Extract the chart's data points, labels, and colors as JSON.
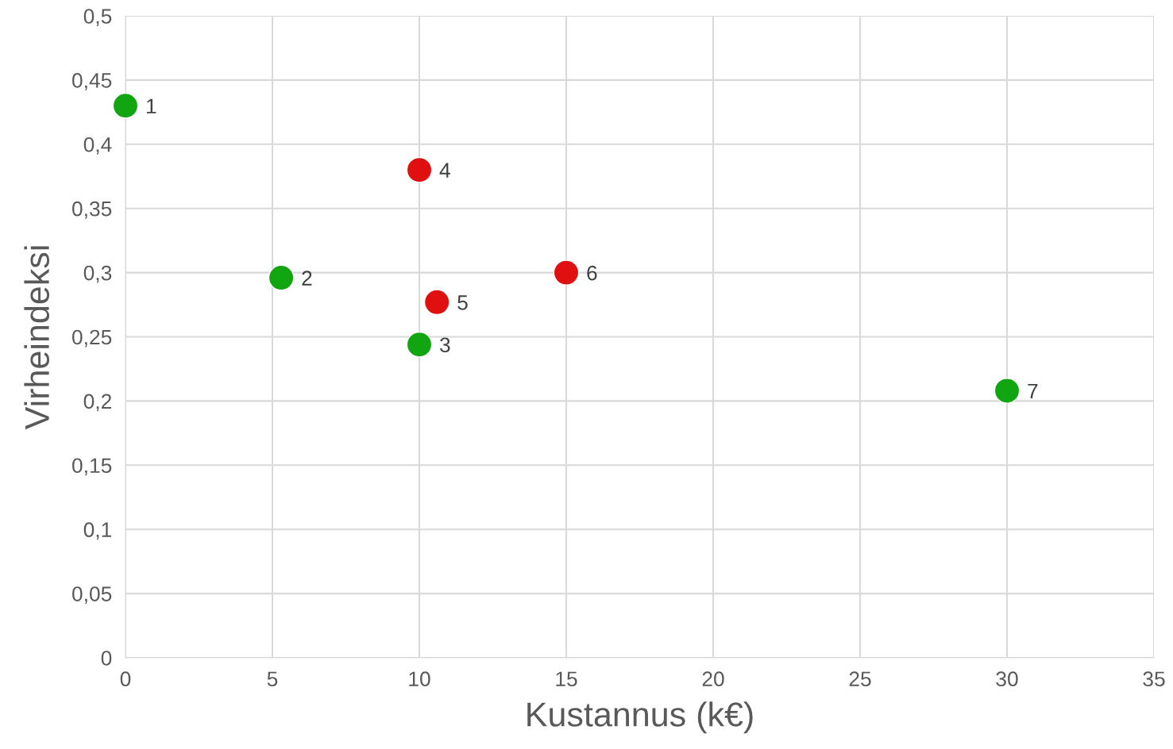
{
  "chart_data": {
    "type": "scatter",
    "xlabel": "Kustannus (k€)",
    "ylabel": "Virheindeksi",
    "series": [
      {
        "color": "#12a512",
        "x": [
          0,
          5.3,
          10,
          30
        ],
        "values": [
          0.43,
          0.296,
          0.244,
          0.208
        ]
      },
      {
        "color": "#e01010",
        "x": [
          10,
          10.6,
          15
        ],
        "values": [
          0.38,
          0.277,
          0.3
        ]
      }
    ],
    "annotations": [
      {
        "text": "1",
        "x": 0,
        "y": 0.43
      },
      {
        "text": "2",
        "x": 5.3,
        "y": 0.296
      },
      {
        "text": "3",
        "x": 10,
        "y": 0.244
      },
      {
        "text": "4",
        "x": 10,
        "y": 0.38
      },
      {
        "text": "5",
        "x": 10.6,
        "y": 0.277
      },
      {
        "text": "6",
        "x": 15,
        "y": 0.3
      },
      {
        "text": "7",
        "x": 30,
        "y": 0.208
      }
    ],
    "xlim": [
      0,
      35
    ],
    "xticks": [
      0,
      5,
      10,
      15,
      20,
      25,
      30,
      35
    ],
    "ylim": [
      0,
      0.5
    ],
    "yticks": [
      0,
      {
        "value": 0.05,
        "label": "0,05"
      },
      {
        "value": 0.1,
        "label": "0,1"
      },
      {
        "value": 0.15,
        "label": "0,15"
      },
      {
        "value": 0.2,
        "label": "0,2"
      },
      {
        "value": 0.25,
        "label": "0,25"
      },
      {
        "value": 0.3,
        "label": "0,3"
      },
      {
        "value": 0.35,
        "label": "0,35"
      },
      {
        "value": 0.4,
        "label": "0,4"
      },
      {
        "value": 0.45,
        "label": "0,45"
      },
      {
        "value": 0.5,
        "label": "0,5"
      }
    ],
    "grid": true,
    "marker": "circle"
  }
}
